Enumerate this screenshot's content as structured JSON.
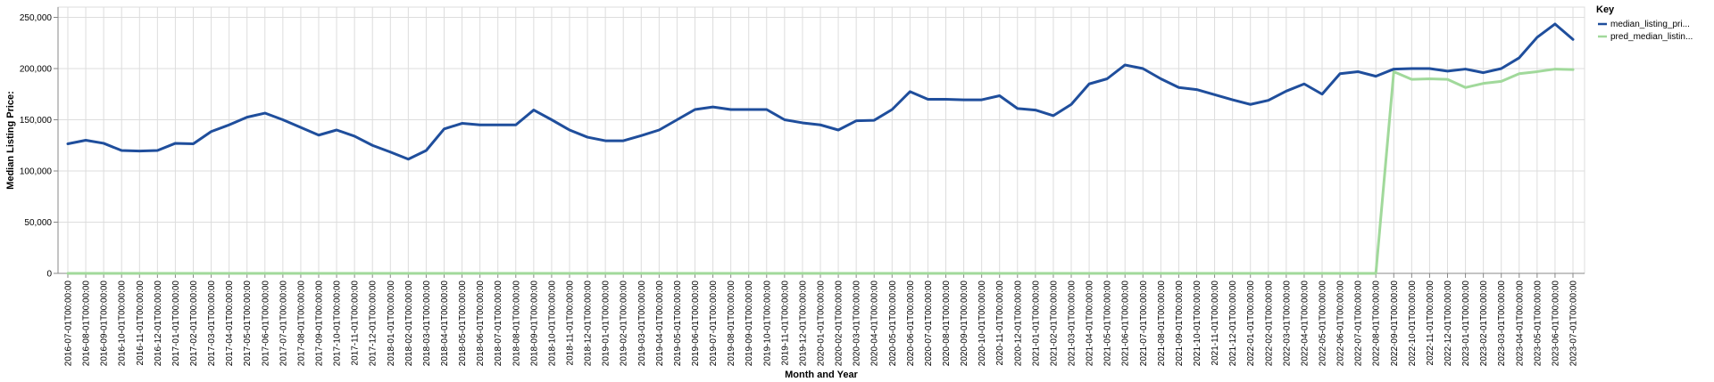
{
  "chart_data": {
    "type": "line",
    "xlabel": "Month and Year",
    "ylabel": "Median Listing Price:",
    "ylim": [
      0,
      260000
    ],
    "yticks": [
      0,
      50000,
      100000,
      150000,
      200000,
      250000
    ],
    "ytick_labels": [
      "0",
      "50,000",
      "100,000",
      "150,000",
      "200,000",
      "250,000"
    ],
    "grid": true,
    "legend_title": "Key",
    "legend_position": "top-right",
    "categories": [
      "2016-07-01T00:00:00",
      "2016-08-01T00:00:00",
      "2016-09-01T00:00:00",
      "2016-10-01T00:00:00",
      "2016-11-01T00:00:00",
      "2016-12-01T00:00:00",
      "2017-01-01T00:00:00",
      "2017-02-01T00:00:00",
      "2017-03-01T00:00:00",
      "2017-04-01T00:00:00",
      "2017-05-01T00:00:00",
      "2017-06-01T00:00:00",
      "2017-07-01T00:00:00",
      "2017-08-01T00:00:00",
      "2017-09-01T00:00:00",
      "2017-10-01T00:00:00",
      "2017-11-01T00:00:00",
      "2017-12-01T00:00:00",
      "2018-01-01T00:00:00",
      "2018-02-01T00:00:00",
      "2018-03-01T00:00:00",
      "2018-04-01T00:00:00",
      "2018-05-01T00:00:00",
      "2018-06-01T00:00:00",
      "2018-07-01T00:00:00",
      "2018-08-01T00:00:00",
      "2018-09-01T00:00:00",
      "2018-10-01T00:00:00",
      "2018-11-01T00:00:00",
      "2018-12-01T00:00:00",
      "2019-01-01T00:00:00",
      "2019-02-01T00:00:00",
      "2019-03-01T00:00:00",
      "2019-04-01T00:00:00",
      "2019-05-01T00:00:00",
      "2019-06-01T00:00:00",
      "2019-07-01T00:00:00",
      "2019-08-01T00:00:00",
      "2019-09-01T00:00:00",
      "2019-10-01T00:00:00",
      "2019-11-01T00:00:00",
      "2019-12-01T00:00:00",
      "2020-01-01T00:00:00",
      "2020-02-01T00:00:00",
      "2020-03-01T00:00:00",
      "2020-04-01T00:00:00",
      "2020-05-01T00:00:00",
      "2020-06-01T00:00:00",
      "2020-07-01T00:00:00",
      "2020-08-01T00:00:00",
      "2020-09-01T00:00:00",
      "2020-10-01T00:00:00",
      "2020-11-01T00:00:00",
      "2020-12-01T00:00:00",
      "2021-01-01T00:00:00",
      "2021-02-01T00:00:00",
      "2021-03-01T00:00:00",
      "2021-04-01T00:00:00",
      "2021-05-01T00:00:00",
      "2021-06-01T00:00:00",
      "2021-07-01T00:00:00",
      "2021-08-01T00:00:00",
      "2021-09-01T00:00:00",
      "2021-10-01T00:00:00",
      "2021-11-01T00:00:00",
      "2021-12-01T00:00:00",
      "2022-01-01T00:00:00",
      "2022-02-01T00:00:00",
      "2022-03-01T00:00:00",
      "2022-04-01T00:00:00",
      "2022-05-01T00:00:00",
      "2022-06-01T00:00:00",
      "2022-07-01T00:00:00",
      "2022-08-01T00:00:00",
      "2022-09-01T00:00:00",
      "2022-10-01T00:00:00",
      "2022-11-01T00:00:00",
      "2022-12-01T00:00:00",
      "2023-01-01T00:00:00",
      "2023-02-01T00:00:00",
      "2023-03-01T00:00:00",
      "2023-04-01T00:00:00",
      "2023-05-01T00:00:00",
      "2023-06-01T00:00:00",
      "2023-07-01T00:00:00"
    ],
    "series": [
      {
        "name": "median_listing_pri...",
        "color": "#1f4e9c",
        "values": [
          126500,
          130000,
          127000,
          120000,
          119500,
          120000,
          127000,
          126500,
          138500,
          145000,
          152500,
          156500,
          150000,
          142500,
          135000,
          140000,
          134000,
          125000,
          118500,
          111500,
          120000,
          141000,
          146500,
          145000,
          145000,
          145000,
          159500,
          150000,
          140000,
          133000,
          129500,
          129500,
          134500,
          140000,
          150000,
          160000,
          162500,
          160000,
          160000,
          160000,
          150000,
          147000,
          145000,
          140000,
          149000,
          149500,
          160000,
          177500,
          170000,
          170000,
          169500,
          169500,
          173500,
          161000,
          159500,
          154000,
          165000,
          185000,
          190000,
          203500,
          200000,
          190000,
          181500,
          179500,
          174500,
          169500,
          165000,
          169000,
          178000,
          185000,
          175000,
          195000,
          197000,
          192500,
          199500,
          200000,
          200000,
          197500,
          199500,
          196000,
          200000,
          210500,
          230500,
          243500,
          228500
        ]
      },
      {
        "name": "pred_median_listin...",
        "color": "#a1d99b",
        "values": [
          0,
          0,
          0,
          0,
          0,
          0,
          0,
          0,
          0,
          0,
          0,
          0,
          0,
          0,
          0,
          0,
          0,
          0,
          0,
          0,
          0,
          0,
          0,
          0,
          0,
          0,
          0,
          0,
          0,
          0,
          0,
          0,
          0,
          0,
          0,
          0,
          0,
          0,
          0,
          0,
          0,
          0,
          0,
          0,
          0,
          0,
          0,
          0,
          0,
          0,
          0,
          0,
          0,
          0,
          0,
          0,
          0,
          0,
          0,
          0,
          0,
          0,
          0,
          0,
          0,
          0,
          0,
          0,
          0,
          0,
          0,
          0,
          0,
          0,
          197000,
          189500,
          190000,
          189500,
          181500,
          185500,
          187500,
          195000,
          197000,
          199500,
          199000
        ]
      }
    ]
  }
}
